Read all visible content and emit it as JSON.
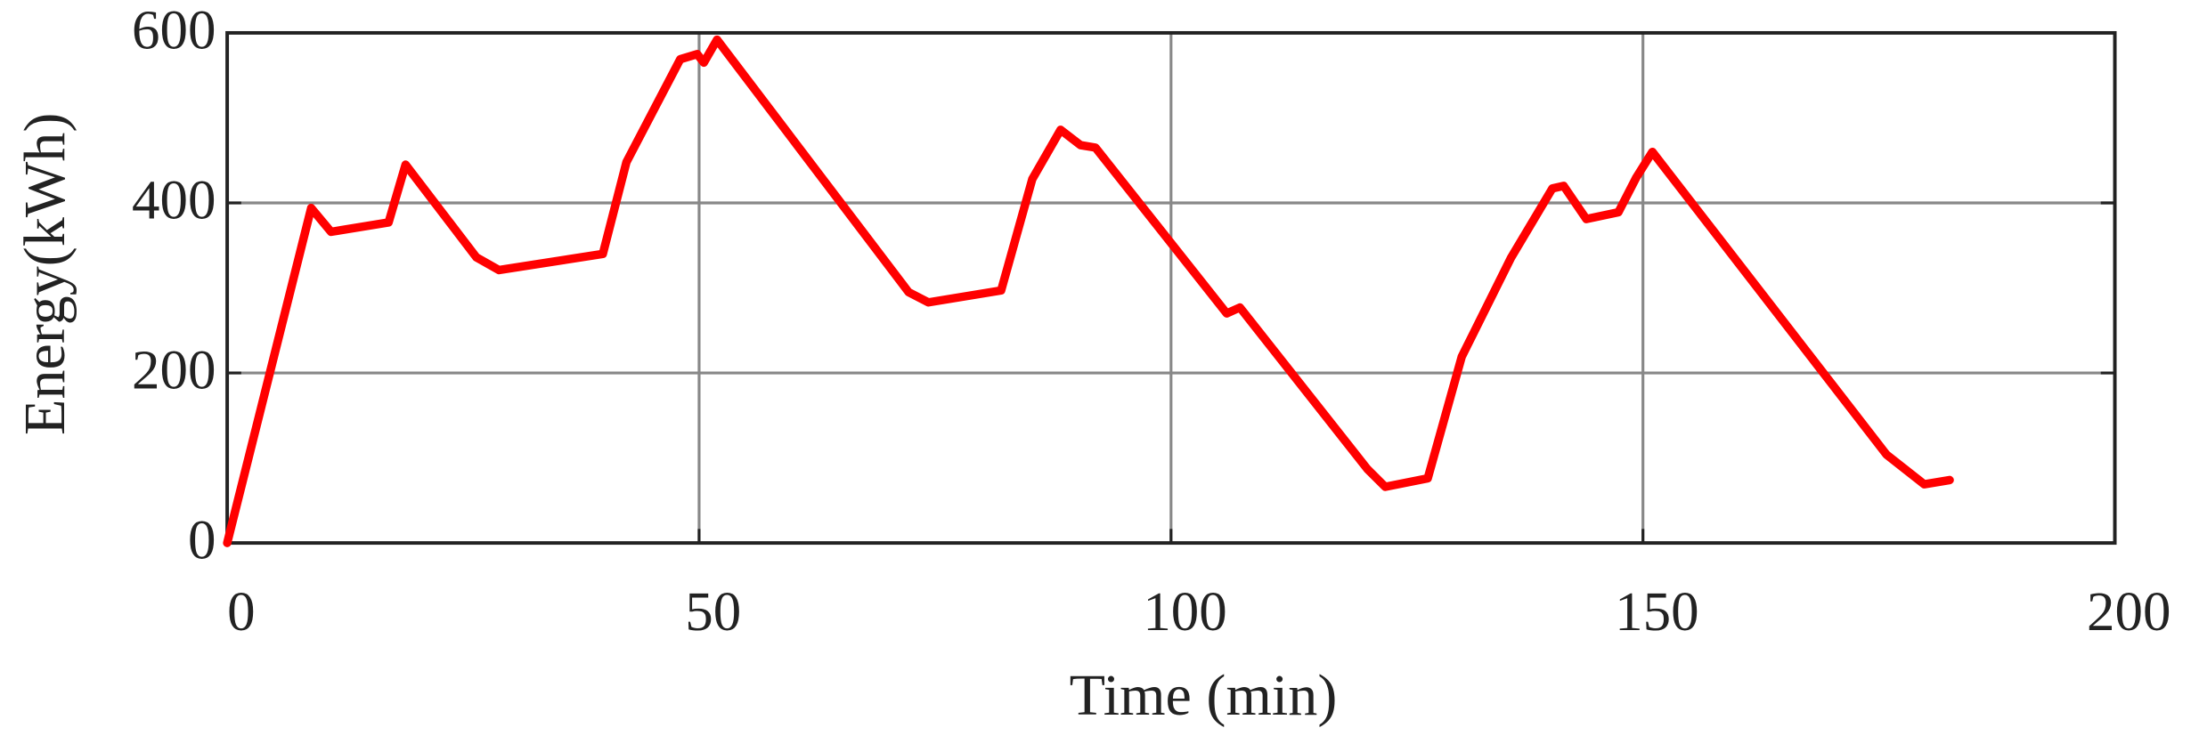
{
  "chart_data": {
    "type": "line",
    "x_label": "Time (min)",
    "y_label": "Energy(kWh)",
    "x": [
      0,
      8.9,
      11.0,
      17.1,
      18.9,
      26.4,
      28.8,
      39.8,
      42.3,
      48.0,
      49.8,
      50.5,
      51.9,
      72.2,
      74.3,
      82.0,
      85.3,
      88.3,
      90.4,
      92.0,
      105.9,
      107.3,
      120.8,
      122.7,
      127.2,
      130.8,
      136.0,
      140.4,
      141.6,
      144.0,
      147.4,
      149.3,
      151.0,
      175.8,
      179.8,
      182.5
    ],
    "series": [
      {
        "color": "#ff0000",
        "values": [
          0,
          394,
          366,
          377,
          445,
          336,
          321,
          340,
          448,
          569,
          575,
          565,
          592,
          295,
          283,
          297,
          428,
          486,
          468,
          465,
          270,
          277,
          87,
          66,
          76,
          219,
          335,
          417,
          420,
          381,
          389,
          430,
          460,
          104,
          69,
          74
        ]
      }
    ],
    "xlim": [
      0,
      200
    ],
    "xticks": [
      0,
      50,
      100,
      150,
      200
    ],
    "ylim": [
      0,
      600
    ],
    "yticks": [
      0,
      200,
      400,
      600
    ],
    "grid": true
  }
}
